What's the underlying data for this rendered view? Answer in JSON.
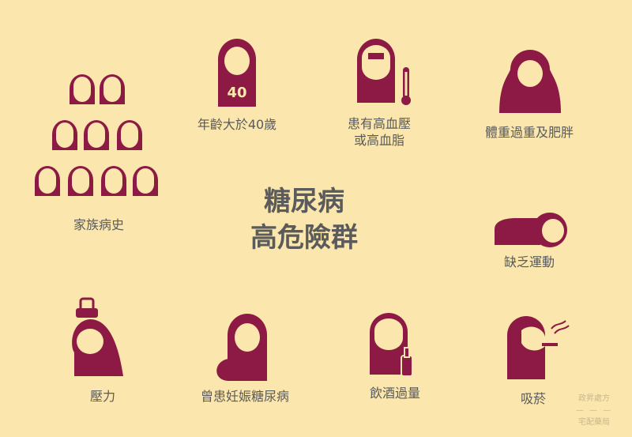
{
  "title": {
    "line1": "糖尿病",
    "line2": "高危險群"
  },
  "colors": {
    "background": "#fbe7ad",
    "figure": "#8c1a44",
    "text": "#5a5a5a"
  },
  "factors": [
    {
      "id": "family-history",
      "label": "家族病史"
    },
    {
      "id": "age",
      "label": "年齡大於40歲",
      "badge": "40"
    },
    {
      "id": "hypertension",
      "label1": "患有高血壓",
      "label2": "或高血脂"
    },
    {
      "id": "overweight",
      "label": "體重過重及肥胖"
    },
    {
      "id": "inactivity",
      "label": "缺乏運動"
    },
    {
      "id": "stress",
      "label": "壓力"
    },
    {
      "id": "gestational",
      "label": "曾患妊娠糖尿病"
    },
    {
      "id": "alcohol",
      "label": "飲酒過量"
    },
    {
      "id": "smoking",
      "label": "吸菸"
    }
  ],
  "credit": {
    "line1": "政昇處方",
    "line2": "宅配藥局",
    "separator": "— — —"
  }
}
